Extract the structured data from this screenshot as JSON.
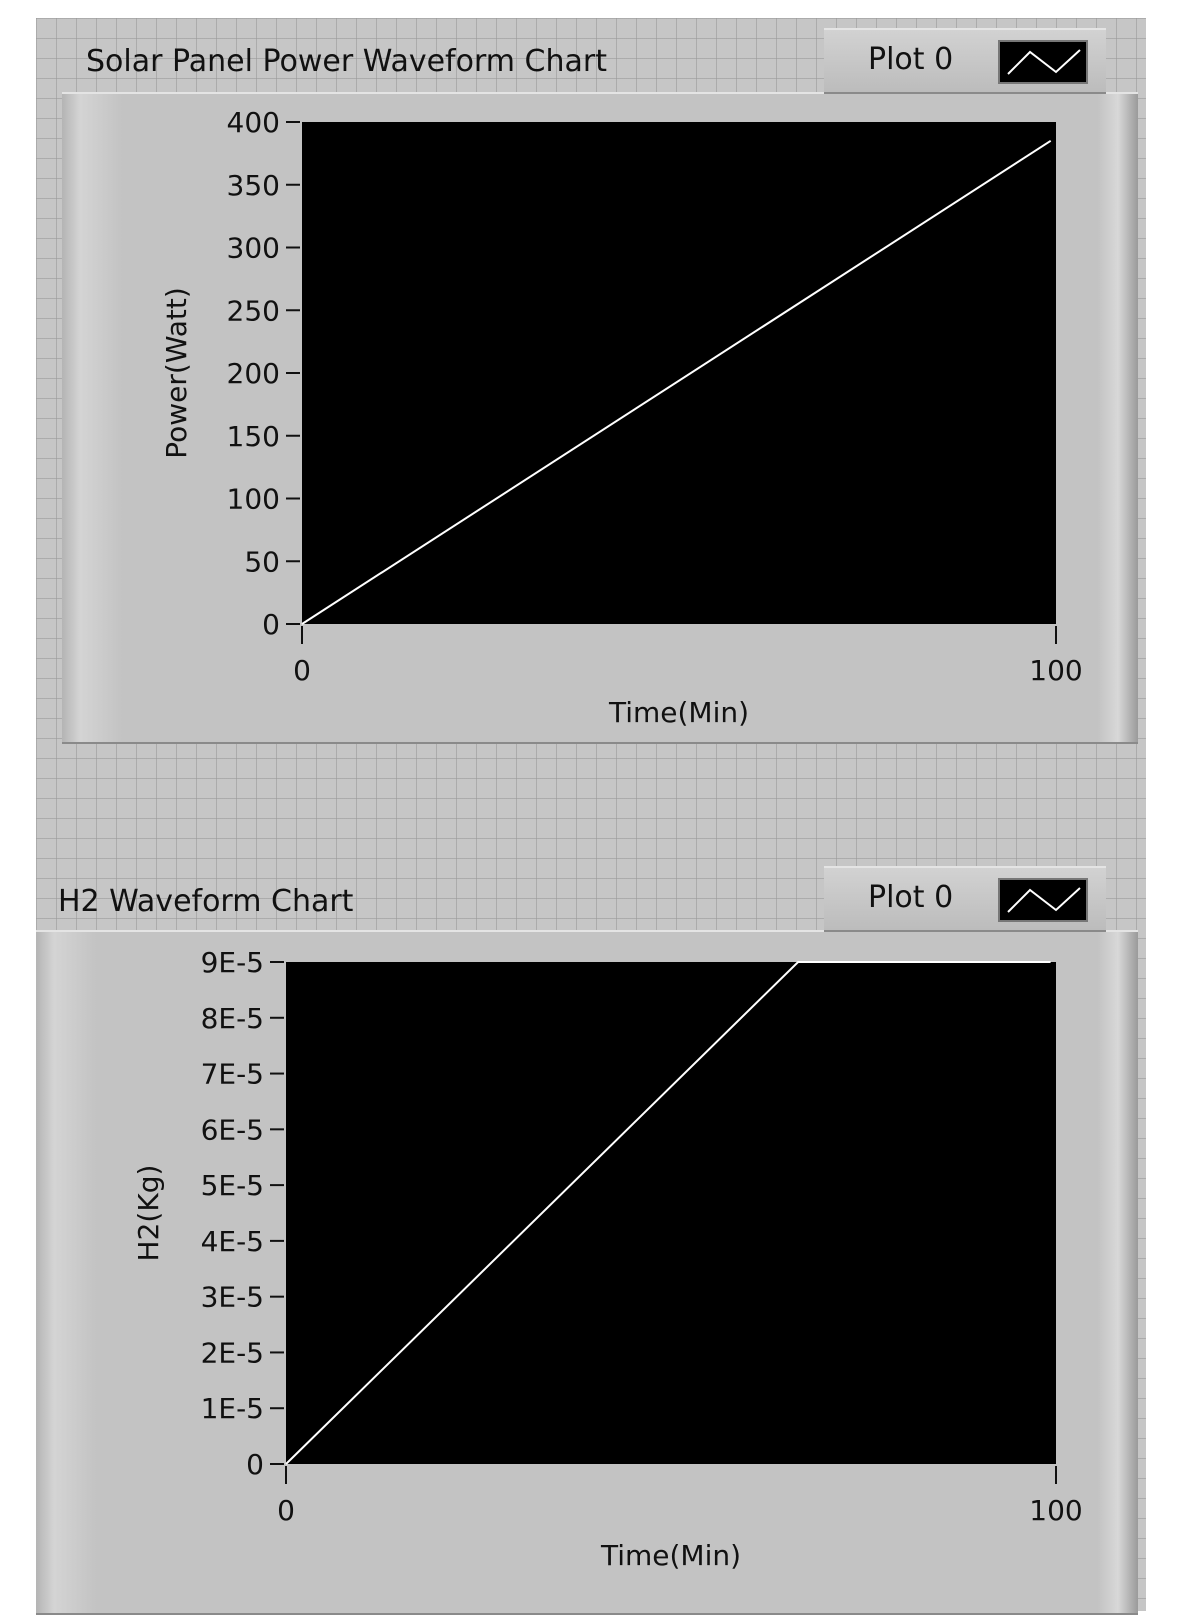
{
  "charts": [
    {
      "title": "Solar Panel Power Waveform Chart",
      "legend_label": "Plot 0",
      "xlabel": "Time(Min)",
      "ylabel": "Power(Watt)",
      "xticks": [
        "0",
        "100"
      ],
      "yticks": [
        "0",
        "50",
        "100",
        "150",
        "200",
        "250",
        "300",
        "350",
        "400"
      ],
      "plot_background": "#000000",
      "trace_color": "#ffffff"
    },
    {
      "title": "H2 Waveform Chart",
      "legend_label": "Plot 0",
      "xlabel": "Time(Min)",
      "ylabel": "H2(Kg)",
      "xticks": [
        "0",
        "100"
      ],
      "yticks": [
        "0",
        "1E-5",
        "2E-5",
        "3E-5",
        "4E-5",
        "5E-5",
        "6E-5",
        "7E-5",
        "8E-5",
        "9E-5"
      ],
      "plot_background": "#000000",
      "trace_color": "#ffffff"
    }
  ],
  "chart_data": [
    {
      "type": "line",
      "title": "Solar Panel Power Waveform Chart",
      "xlabel": "Time(Min)",
      "ylabel": "Power(Watt)",
      "xlim": [
        0,
        100
      ],
      "ylim": [
        0,
        400
      ],
      "grid": false,
      "legend": "top-right",
      "series": [
        {
          "name": "Plot 0",
          "x": [
            0,
            99.3
          ],
          "y": [
            0,
            385
          ]
        }
      ]
    },
    {
      "type": "line",
      "title": "H2 Waveform Chart",
      "xlabel": "Time(Min)",
      "ylabel": "H2(Kg)",
      "xlim": [
        0,
        100
      ],
      "ylim": [
        0,
        9e-05
      ],
      "grid": false,
      "legend": "top-right",
      "series": [
        {
          "name": "Plot 0",
          "x": [
            0,
            66.5,
            99.3
          ],
          "y": [
            0,
            9e-05,
            9e-05
          ]
        }
      ]
    }
  ]
}
